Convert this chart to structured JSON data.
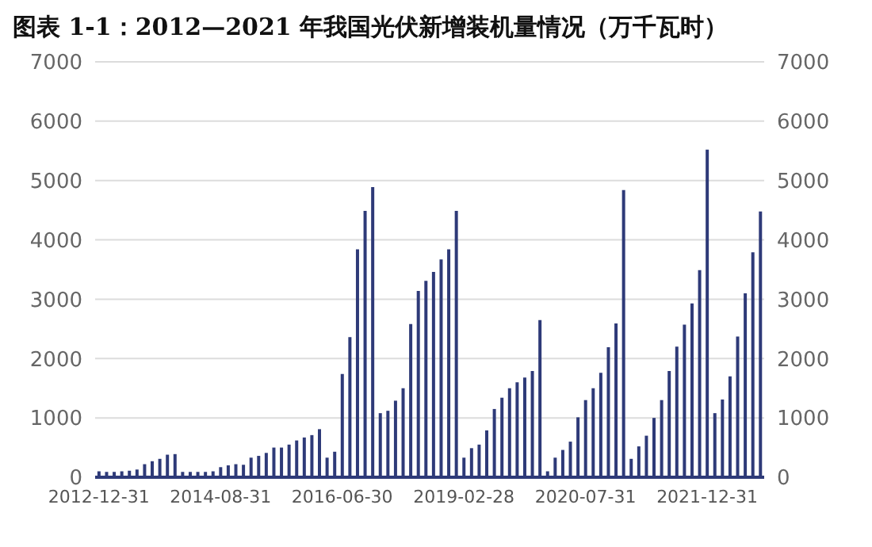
{
  "chart_data": {
    "type": "bar",
    "title": "图表 1-1：2012—2021 年我国光伏新增装机量情况（万千瓦时）",
    "categories": [
      "2012-12-31",
      null,
      null,
      null,
      null,
      null,
      null,
      null,
      null,
      null,
      null,
      null,
      null,
      null,
      null,
      null,
      "2014-08-31",
      null,
      null,
      null,
      null,
      null,
      null,
      null,
      null,
      null,
      null,
      null,
      null,
      null,
      null,
      null,
      "2016-06-30",
      null,
      null,
      null,
      null,
      null,
      null,
      null,
      null,
      null,
      null,
      null,
      null,
      null,
      null,
      null,
      "2019-02-28",
      null,
      null,
      null,
      null,
      null,
      null,
      null,
      null,
      null,
      null,
      null,
      null,
      null,
      null,
      null,
      "2020-07-31",
      null,
      null,
      null,
      null,
      null,
      null,
      null,
      null,
      null,
      null,
      null,
      null,
      null,
      null,
      null,
      "2021-12-31",
      null,
      null,
      null,
      null,
      null,
      null,
      null
    ],
    "values": [
      100,
      90,
      90,
      100,
      110,
      130,
      220,
      270,
      310,
      380,
      390,
      90,
      90,
      90,
      90,
      100,
      170,
      200,
      220,
      210,
      330,
      360,
      410,
      500,
      500,
      550,
      620,
      670,
      710,
      810,
      330,
      430,
      1740,
      2360,
      3840,
      4490,
      4890,
      1080,
      1120,
      1290,
      1500,
      2580,
      3140,
      3310,
      3460,
      3670,
      3840,
      4490,
      330,
      490,
      550,
      790,
      1150,
      1340,
      1500,
      1600,
      1680,
      1790,
      2650,
      100,
      330,
      460,
      600,
      1010,
      1300,
      1500,
      1760,
      2190,
      2590,
      4840,
      310,
      520,
      700,
      1000,
      1300,
      1790,
      2200,
      2570,
      2930,
      3490,
      5520,
      1080,
      1310,
      1700,
      2370,
      3100,
      3790,
      4480
    ],
    "color": "#2e3a78",
    "ylim": [
      0,
      7000
    ],
    "yticks": [
      0,
      1000,
      2000,
      3000,
      4000,
      5000,
      6000,
      7000
    ],
    "y2lim": [
      0,
      7000
    ],
    "y2ticks": [
      0,
      1000,
      2000,
      3000,
      4000,
      5000,
      6000,
      7000
    ],
    "grid": "y",
    "legend": false
  }
}
